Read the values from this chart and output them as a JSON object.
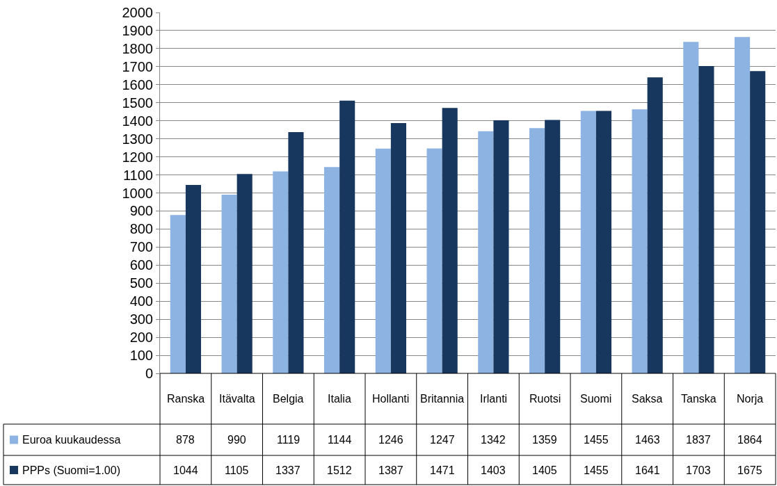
{
  "chart_data": {
    "type": "bar",
    "categories": [
      "Ranska",
      "Itävalta",
      "Belgia",
      "Italia",
      "Hollanti",
      "Britannia",
      "Irlanti",
      "Ruotsi",
      "Suomi",
      "Saksa",
      "Tanska",
      "Norja"
    ],
    "series": [
      {
        "name": "Euroa kuukaudessa",
        "color": "#8db3e2",
        "values": [
          878,
          990,
          1119,
          1144,
          1246,
          1247,
          1342,
          1359,
          1455,
          1463,
          1837,
          1864
        ]
      },
      {
        "name": "PPPs (Suomi=1.00)",
        "color": "#17375e",
        "values": [
          1044,
          1105,
          1337,
          1512,
          1387,
          1471,
          1403,
          1405,
          1455,
          1641,
          1703,
          1675
        ]
      }
    ],
    "ylim": [
      0,
      2000
    ],
    "yticks": [
      0,
      100,
      200,
      300,
      400,
      500,
      600,
      700,
      800,
      900,
      1000,
      1100,
      1200,
      1300,
      1400,
      1500,
      1600,
      1700,
      1800,
      1900,
      2000
    ],
    "grid": "y",
    "legend": "bottom left",
    "data_labels": true
  }
}
